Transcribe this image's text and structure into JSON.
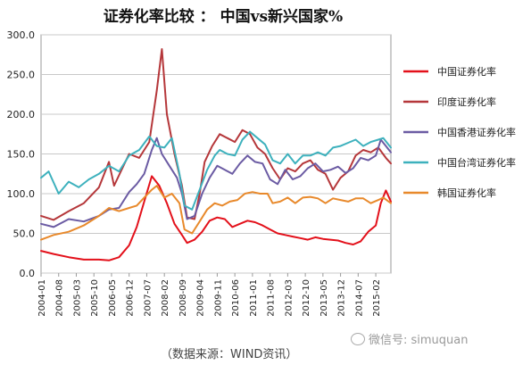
{
  "chart_data": {
    "type": "line",
    "title": "证券化率比较 ：  中国vs新兴国家%",
    "source": "（数据来源：WIND资讯）",
    "watermark": "微信号: simuquan",
    "ylim": [
      0,
      300
    ],
    "yticks": [
      "0.0",
      "50.0",
      "100.0",
      "150.0",
      "200.0",
      "250.0",
      "300.0"
    ],
    "grid": true,
    "legend_position": "right",
    "x_ticks": [
      "2004-01",
      "2004-08",
      "2005-03",
      "2005-10",
      "2006-05",
      "2006-12",
      "2007-07",
      "2008-02",
      "2008-09",
      "2009-04",
      "2009-11",
      "2010-06",
      "2011-01",
      "2011-08",
      "2012-03",
      "2012-10",
      "2013-05",
      "2013-12",
      "2014-07",
      "2015-02"
    ],
    "x_end": "2015-08",
    "series": [
      {
        "name": "中国证券化率",
        "color": "#e3101a",
        "values": [
          [
            "2004-01",
            28
          ],
          [
            "2004-06",
            24
          ],
          [
            "2004-12",
            20
          ],
          [
            "2005-06",
            17
          ],
          [
            "2005-12",
            17
          ],
          [
            "2006-04",
            16
          ],
          [
            "2006-08",
            20
          ],
          [
            "2006-12",
            35
          ],
          [
            "2007-03",
            58
          ],
          [
            "2007-06",
            90
          ],
          [
            "2007-09",
            122
          ],
          [
            "2007-12",
            110
          ],
          [
            "2008-03",
            88
          ],
          [
            "2008-06",
            62
          ],
          [
            "2008-09",
            48
          ],
          [
            "2008-11",
            38
          ],
          [
            "2009-02",
            42
          ],
          [
            "2009-05",
            52
          ],
          [
            "2009-08",
            66
          ],
          [
            "2009-11",
            70
          ],
          [
            "2010-02",
            68
          ],
          [
            "2010-05",
            58
          ],
          [
            "2010-08",
            62
          ],
          [
            "2010-11",
            66
          ],
          [
            "2011-02",
            64
          ],
          [
            "2011-05",
            60
          ],
          [
            "2011-08",
            55
          ],
          [
            "2011-11",
            50
          ],
          [
            "2012-02",
            48
          ],
          [
            "2012-05",
            46
          ],
          [
            "2012-08",
            44
          ],
          [
            "2012-11",
            42
          ],
          [
            "2013-02",
            45
          ],
          [
            "2013-05",
            43
          ],
          [
            "2013-08",
            42
          ],
          [
            "2013-11",
            41
          ],
          [
            "2014-02",
            38
          ],
          [
            "2014-05",
            36
          ],
          [
            "2014-08",
            40
          ],
          [
            "2014-11",
            52
          ],
          [
            "2015-02",
            60
          ],
          [
            "2015-04",
            88
          ],
          [
            "2015-06",
            104
          ],
          [
            "2015-08",
            90
          ]
        ]
      },
      {
        "name": "印度证券化率",
        "color": "#b5373a",
        "values": [
          [
            "2004-01",
            72
          ],
          [
            "2004-06",
            67
          ],
          [
            "2004-12",
            78
          ],
          [
            "2005-06",
            88
          ],
          [
            "2005-12",
            108
          ],
          [
            "2006-04",
            140
          ],
          [
            "2006-06",
            110
          ],
          [
            "2006-12",
            150
          ],
          [
            "2007-04",
            145
          ],
          [
            "2007-08",
            165
          ],
          [
            "2007-11",
            230
          ],
          [
            "2008-01",
            282
          ],
          [
            "2008-03",
            200
          ],
          [
            "2008-06",
            150
          ],
          [
            "2008-09",
            110
          ],
          [
            "2008-11",
            70
          ],
          [
            "2009-02",
            68
          ],
          [
            "2009-04",
            100
          ],
          [
            "2009-06",
            140
          ],
          [
            "2009-09",
            160
          ],
          [
            "2009-12",
            175
          ],
          [
            "2010-03",
            170
          ],
          [
            "2010-06",
            165
          ],
          [
            "2010-09",
            180
          ],
          [
            "2010-12",
            175
          ],
          [
            "2011-03",
            158
          ],
          [
            "2011-06",
            150
          ],
          [
            "2011-09",
            132
          ],
          [
            "2011-12",
            118
          ],
          [
            "2012-03",
            132
          ],
          [
            "2012-06",
            128
          ],
          [
            "2012-09",
            138
          ],
          [
            "2012-12",
            142
          ],
          [
            "2013-03",
            130
          ],
          [
            "2013-06",
            125
          ],
          [
            "2013-09",
            105
          ],
          [
            "2013-12",
            120
          ],
          [
            "2014-03",
            128
          ],
          [
            "2014-06",
            148
          ],
          [
            "2014-09",
            155
          ],
          [
            "2014-12",
            152
          ],
          [
            "2015-03",
            158
          ],
          [
            "2015-06",
            145
          ],
          [
            "2015-08",
            138
          ]
        ]
      },
      {
        "name": "中国香港证券化率",
        "color": "#6b5ba3",
        "values": [
          [
            "2004-01",
            62
          ],
          [
            "2004-06",
            58
          ],
          [
            "2004-12",
            68
          ],
          [
            "2005-06",
            65
          ],
          [
            "2005-12",
            72
          ],
          [
            "2006-04",
            80
          ],
          [
            "2006-08",
            82
          ],
          [
            "2006-12",
            102
          ],
          [
            "2007-03",
            112
          ],
          [
            "2007-06",
            125
          ],
          [
            "2007-09",
            155
          ],
          [
            "2007-11",
            170
          ],
          [
            "2008-01",
            150
          ],
          [
            "2008-04",
            135
          ],
          [
            "2008-07",
            120
          ],
          [
            "2008-09",
            100
          ],
          [
            "2008-11",
            68
          ],
          [
            "2009-02",
            72
          ],
          [
            "2009-05",
            100
          ],
          [
            "2009-08",
            120
          ],
          [
            "2009-11",
            135
          ],
          [
            "2010-02",
            130
          ],
          [
            "2010-05",
            125
          ],
          [
            "2010-08",
            138
          ],
          [
            "2010-11",
            148
          ],
          [
            "2011-02",
            140
          ],
          [
            "2011-05",
            138
          ],
          [
            "2011-08",
            118
          ],
          [
            "2011-11",
            112
          ],
          [
            "2012-02",
            130
          ],
          [
            "2012-05",
            118
          ],
          [
            "2012-08",
            122
          ],
          [
            "2012-11",
            132
          ],
          [
            "2013-02",
            138
          ],
          [
            "2013-05",
            128
          ],
          [
            "2013-08",
            130
          ],
          [
            "2013-11",
            134
          ],
          [
            "2014-02",
            126
          ],
          [
            "2014-05",
            132
          ],
          [
            "2014-08",
            145
          ],
          [
            "2014-11",
            142
          ],
          [
            "2015-02",
            148
          ],
          [
            "2015-04",
            168
          ],
          [
            "2015-06",
            160
          ],
          [
            "2015-08",
            152
          ]
        ]
      },
      {
        "name": "中国台湾证券化率",
        "color": "#3db1bd",
        "values": [
          [
            "2004-01",
            120
          ],
          [
            "2004-04",
            128
          ],
          [
            "2004-08",
            100
          ],
          [
            "2004-12",
            115
          ],
          [
            "2005-04",
            108
          ],
          [
            "2005-08",
            118
          ],
          [
            "2005-12",
            125
          ],
          [
            "2006-04",
            135
          ],
          [
            "2006-08",
            128
          ],
          [
            "2006-12",
            148
          ],
          [
            "2007-04",
            155
          ],
          [
            "2007-08",
            172
          ],
          [
            "2007-11",
            160
          ],
          [
            "2008-02",
            158
          ],
          [
            "2008-05",
            170
          ],
          [
            "2008-08",
            125
          ],
          [
            "2008-10",
            85
          ],
          [
            "2009-01",
            80
          ],
          [
            "2009-04",
            105
          ],
          [
            "2009-07",
            130
          ],
          [
            "2009-10",
            148
          ],
          [
            "2009-12",
            155
          ],
          [
            "2010-03",
            150
          ],
          [
            "2010-06",
            148
          ],
          [
            "2010-09",
            168
          ],
          [
            "2010-12",
            178
          ],
          [
            "2011-03",
            170
          ],
          [
            "2011-06",
            162
          ],
          [
            "2011-09",
            142
          ],
          [
            "2011-12",
            138
          ],
          [
            "2012-03",
            150
          ],
          [
            "2012-06",
            138
          ],
          [
            "2012-09",
            148
          ],
          [
            "2012-12",
            148
          ],
          [
            "2013-03",
            152
          ],
          [
            "2013-06",
            148
          ],
          [
            "2013-09",
            158
          ],
          [
            "2013-12",
            160
          ],
          [
            "2014-03",
            164
          ],
          [
            "2014-06",
            168
          ],
          [
            "2014-09",
            160
          ],
          [
            "2014-12",
            165
          ],
          [
            "2015-03",
            168
          ],
          [
            "2015-05",
            170
          ],
          [
            "2015-08",
            158
          ]
        ]
      },
      {
        "name": "韩国证券化率",
        "color": "#e8892b",
        "values": [
          [
            "2004-01",
            42
          ],
          [
            "2004-06",
            48
          ],
          [
            "2004-12",
            52
          ],
          [
            "2005-06",
            60
          ],
          [
            "2005-12",
            72
          ],
          [
            "2006-04",
            82
          ],
          [
            "2006-08",
            78
          ],
          [
            "2006-12",
            82
          ],
          [
            "2007-03",
            85
          ],
          [
            "2007-06",
            95
          ],
          [
            "2007-09",
            105
          ],
          [
            "2007-11",
            110
          ],
          [
            "2008-02",
            95
          ],
          [
            "2008-05",
            100
          ],
          [
            "2008-08",
            88
          ],
          [
            "2008-10",
            55
          ],
          [
            "2009-01",
            50
          ],
          [
            "2009-04",
            65
          ],
          [
            "2009-07",
            80
          ],
          [
            "2009-10",
            88
          ],
          [
            "2010-01",
            85
          ],
          [
            "2010-04",
            90
          ],
          [
            "2010-07",
            92
          ],
          [
            "2010-10",
            100
          ],
          [
            "2011-01",
            102
          ],
          [
            "2011-04",
            100
          ],
          [
            "2011-07",
            100
          ],
          [
            "2011-09",
            88
          ],
          [
            "2011-12",
            90
          ],
          [
            "2012-03",
            95
          ],
          [
            "2012-06",
            88
          ],
          [
            "2012-09",
            95
          ],
          [
            "2012-12",
            96
          ],
          [
            "2013-03",
            94
          ],
          [
            "2013-06",
            88
          ],
          [
            "2013-09",
            94
          ],
          [
            "2013-12",
            92
          ],
          [
            "2014-03",
            90
          ],
          [
            "2014-06",
            94
          ],
          [
            "2014-09",
            94
          ],
          [
            "2014-12",
            88
          ],
          [
            "2015-03",
            92
          ],
          [
            "2015-05",
            95
          ],
          [
            "2015-08",
            88
          ]
        ]
      }
    ]
  }
}
